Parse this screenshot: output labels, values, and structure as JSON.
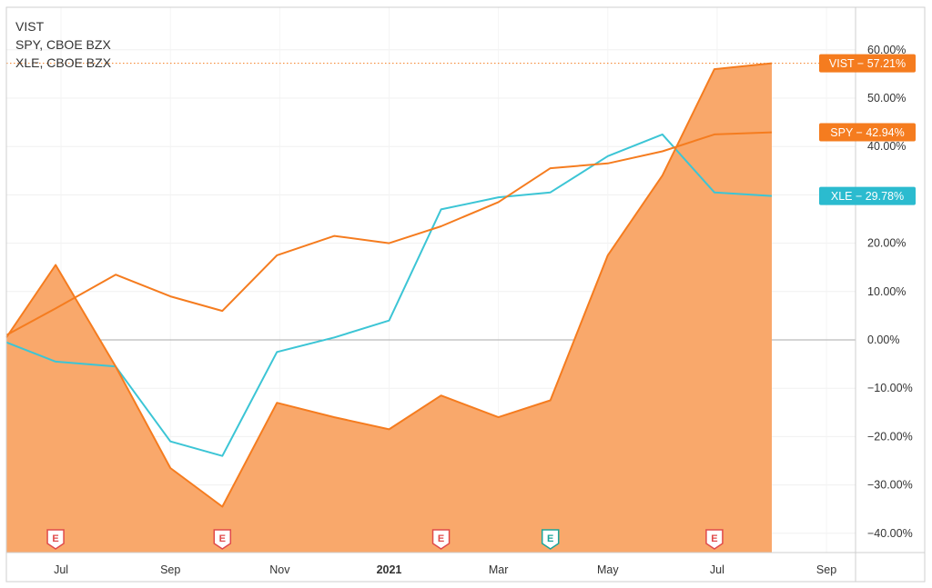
{
  "chart_data": {
    "type": "area",
    "title": "",
    "xlabel": "",
    "ylabel": "",
    "ylim": [
      -45,
      68
    ],
    "y_ticks": [
      60,
      50,
      40,
      30,
      20,
      10,
      0,
      -10,
      -20,
      -30,
      -40
    ],
    "y_tick_labels": [
      "60.00%",
      "50.00%",
      "40.00%",
      "30.00%",
      "20.00%",
      "10.00%",
      "0.00%",
      "−10.00%",
      "−20.00%",
      "−30.00%",
      "−40.00%"
    ],
    "x_ticks": [
      {
        "label": "Jul",
        "x": 1,
        "bold": false
      },
      {
        "label": "Sep",
        "x": 3,
        "bold": false
      },
      {
        "label": "Nov",
        "x": 5,
        "bold": false
      },
      {
        "label": "2021",
        "x": 7,
        "bold": true
      },
      {
        "label": "Mar",
        "x": 9,
        "bold": false
      },
      {
        "label": "May",
        "x": 11,
        "bold": false
      },
      {
        "label": "Jul",
        "x": 13,
        "bold": false
      },
      {
        "label": "Sep",
        "x": 15,
        "bold": false
      }
    ],
    "xlim": [
      0,
      15.5
    ],
    "legend": [
      "VIST",
      "SPY, CBOE BZX",
      "XLE, CBOE BZX"
    ],
    "legend_position": "top-left",
    "series": [
      {
        "name": "VIST",
        "color": "#f57c1f",
        "fill": "#f9a86b",
        "x": [
          0,
          0.9,
          2,
          3,
          3.95,
          4.95,
          6,
          7,
          7.95,
          9,
          9.95,
          11,
          12,
          12.95,
          14
        ],
        "values": [
          0.5,
          15.5,
          -5.5,
          -26.5,
          -34.5,
          -13,
          -16,
          -18.5,
          -11.5,
          -16,
          -12.5,
          17.5,
          34,
          56,
          57.21
        ]
      },
      {
        "name": "SPY",
        "color": "#f57c1f",
        "x": [
          0,
          0.9,
          2,
          3,
          3.95,
          4.95,
          6,
          7,
          7.95,
          9,
          9.95,
          11,
          12,
          12.95,
          14
        ],
        "values": [
          1,
          6.5,
          13.5,
          9,
          6,
          17.5,
          21.5,
          20,
          23.5,
          28.5,
          35.5,
          36.5,
          39,
          42.5,
          42.94
        ]
      },
      {
        "name": "XLE",
        "color": "#3cc5d5",
        "x": [
          0,
          0.9,
          2,
          3,
          3.95,
          4.95,
          6,
          7,
          7.95,
          9,
          9.95,
          11,
          12,
          12.95,
          14
        ],
        "values": [
          -0.5,
          -4.5,
          -5.5,
          -21,
          -24,
          -2.5,
          0.5,
          4,
          27,
          29.5,
          30.5,
          38,
          42.5,
          30.5,
          29.78
        ]
      }
    ],
    "value_badges": [
      {
        "name": "VIST",
        "text": "VIST − 57.21%",
        "value": 57.21,
        "color": "#f57c1f"
      },
      {
        "name": "SPY",
        "text": "SPY − 42.94%",
        "value": 42.94,
        "color": "#f57c1f"
      },
      {
        "name": "XLE",
        "text": "XLE − 29.78%",
        "value": 29.78,
        "color": "#2bbbcf"
      }
    ],
    "events": [
      {
        "label": "E",
        "x": 0.9,
        "color": "#e04a4a"
      },
      {
        "label": "E",
        "x": 3.95,
        "color": "#e04a4a"
      },
      {
        "label": "E",
        "x": 7.95,
        "color": "#e04a4a"
      },
      {
        "label": "E",
        "x": 9.95,
        "color": "#1aa59a"
      },
      {
        "label": "E",
        "x": 12.95,
        "color": "#e04a4a"
      }
    ],
    "grid": true,
    "zero_line": true
  }
}
